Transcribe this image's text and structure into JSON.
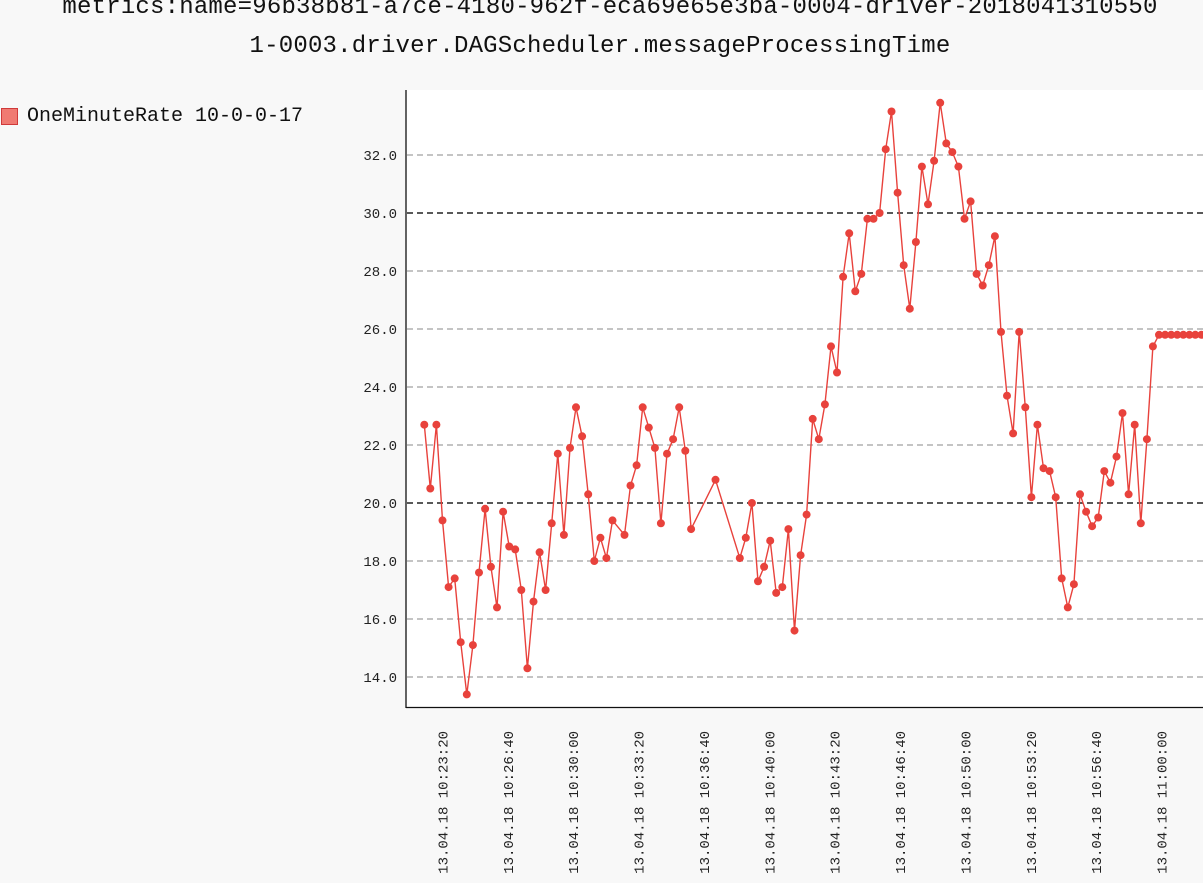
{
  "title_lines": [
    "metrics:name=96b38b81-a7ce-4180-962f-eca69e65e3ba-0004-driver-2018041310550",
    "1-0003.driver.DAGScheduler.messageProcessingTime"
  ],
  "colors": {
    "series_line": "#e8423c",
    "series_point": "#e8423c",
    "legend_fill": "#f07a72",
    "grid": "#888888",
    "grid_major": "#222222",
    "axis": "#111111",
    "background": "#f8f8f8",
    "plot_background": "#ffffff"
  },
  "chart_data": {
    "type": "line",
    "title": "metrics:name=96b38b81-a7ce-4180-962f-eca69e65e3ba-0004-driver-20180413105501-0003.driver.DAGScheduler.messageProcessingTime",
    "xlabel": "",
    "ylabel": "",
    "legend_position": "top-left",
    "grid": true,
    "ylim": [
      12.9,
      34.2
    ],
    "yticks": [
      14.0,
      16.0,
      18.0,
      20.0,
      22.0,
      24.0,
      26.0,
      28.0,
      30.0,
      32.0
    ],
    "ytick_labels": [
      "14.0",
      "16.0",
      "18.0",
      "20.0",
      "22.0",
      "24.0",
      "26.0",
      "28.0",
      "30.0",
      "32.0"
    ],
    "major_gridlines": [
      20.0,
      30.0
    ],
    "x_unit": "minutes since 10:23:20",
    "xlim": [
      -0.28,
      40.95
    ],
    "xticks": [
      0,
      3.333,
      6.667,
      10,
      13.333,
      16.667,
      20,
      23.333,
      26.667,
      30,
      33.333,
      36.667
    ],
    "xtick_labels": [
      "13.04.18 10:23:20",
      "13.04.18 10:26:40",
      "13.04.18 10:30:00",
      "13.04.18 10:33:20",
      "13.04.18 10:36:40",
      "13.04.18 10:40:00",
      "13.04.18 10:43:20",
      "13.04.18 10:46:40",
      "13.04.18 10:50:00",
      "13.04.18 10:53:20",
      "13.04.18 10:56:40",
      "13.04.18 11:00:00"
    ],
    "series": [
      {
        "name": "OneMinuteRate 10-0-0-17",
        "x": [
          -0.93,
          -0.62,
          -0.31,
          0.0,
          0.31,
          0.62,
          0.93,
          1.24,
          1.55,
          1.86,
          2.17,
          2.47,
          2.78,
          3.09,
          3.4,
          3.71,
          4.02,
          4.33,
          4.64,
          4.95,
          5.26,
          5.57,
          5.88,
          6.19,
          6.5,
          6.81,
          7.12,
          7.43,
          7.74,
          8.05,
          8.36,
          8.67,
          9.28,
          9.59,
          9.9,
          10.21,
          10.52,
          10.83,
          11.14,
          11.45,
          11.76,
          12.07,
          12.38,
          12.68,
          13.92,
          15.16,
          15.47,
          15.78,
          16.09,
          16.4,
          16.71,
          17.02,
          17.33,
          17.64,
          17.95,
          18.26,
          18.57,
          18.88,
          19.19,
          19.5,
          19.81,
          20.12,
          20.43,
          20.74,
          21.05,
          21.36,
          21.67,
          21.98,
          22.29,
          22.6,
          22.9,
          23.21,
          23.52,
          23.83,
          24.14,
          24.45,
          24.76,
          25.07,
          25.38,
          25.69,
          26.0,
          26.31,
          26.62,
          26.93,
          27.24,
          27.55,
          27.86,
          28.17,
          28.48,
          28.79,
          29.1,
          29.41,
          29.72,
          30.03,
          30.34,
          30.65,
          30.96,
          31.27,
          31.58,
          31.89,
          32.2,
          32.51,
          32.82,
          33.13,
          33.44,
          33.75,
          34.06,
          34.37,
          34.68,
          34.99,
          35.3,
          35.61,
          35.92,
          36.23,
          36.54,
          36.85,
          37.16,
          37.47,
          37.78,
          38.09,
          38.39,
          38.7,
          39.01,
          39.32,
          39.63,
          39.94
        ],
        "values": [
          22.7,
          20.5,
          22.7,
          19.4,
          17.1,
          17.4,
          15.2,
          13.4,
          15.1,
          17.6,
          19.8,
          17.8,
          16.4,
          19.7,
          18.5,
          18.4,
          17.0,
          14.3,
          16.6,
          18.3,
          17.0,
          19.3,
          21.7,
          18.9,
          21.9,
          23.3,
          22.3,
          20.3,
          18.0,
          18.8,
          18.1,
          19.4,
          18.9,
          20.6,
          21.3,
          23.3,
          22.6,
          21.9,
          19.3,
          21.7,
          22.2,
          23.3,
          21.8,
          19.1,
          20.8,
          18.1,
          18.8,
          20.0,
          17.3,
          17.8,
          18.7,
          16.9,
          17.1,
          19.1,
          15.6,
          18.2,
          19.6,
          22.9,
          22.2,
          23.4,
          25.4,
          24.5,
          27.8,
          29.3,
          27.3,
          27.9,
          29.8,
          29.8,
          30.0,
          32.2,
          33.5,
          30.7,
          28.2,
          26.7,
          29.0,
          31.6,
          30.3,
          31.8,
          33.8,
          32.4,
          32.1,
          31.6,
          29.8,
          30.4,
          27.9,
          27.5,
          28.2,
          29.2,
          25.9,
          23.7,
          22.4,
          25.9,
          23.3,
          20.2,
          22.7,
          21.2,
          21.1,
          20.2,
          17.4,
          16.4,
          17.2,
          20.3,
          19.7,
          19.2,
          19.5,
          21.1,
          20.7,
          21.6,
          23.1,
          20.3,
          22.7,
          19.3,
          22.2,
          25.4,
          25.8,
          25.8,
          25.8,
          25.8,
          25.8,
          25.8,
          25.8,
          25.8,
          25.8,
          25.8,
          25.8,
          25.8
        ]
      }
    ]
  }
}
